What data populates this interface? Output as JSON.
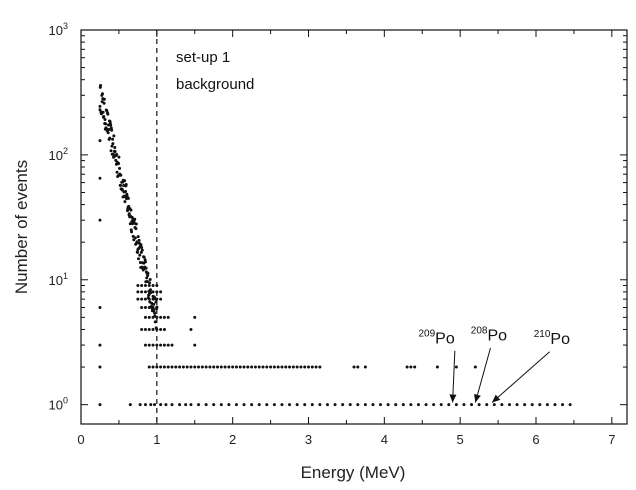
{
  "chart_data": {
    "type": "scatter",
    "xlabel": "Energy (MeV)",
    "ylabel": "Number of events",
    "xlim": [
      0,
      7.2
    ],
    "ylim": [
      0.7,
      1000
    ],
    "yscale": "log",
    "xticks": [
      0,
      1,
      2,
      3,
      4,
      5,
      6,
      7
    ],
    "yticks": [
      {
        "value": 1,
        "label": "10",
        "exp": "0"
      },
      {
        "value": 10,
        "label": "10",
        "exp": "1"
      },
      {
        "value": 100,
        "label": "10",
        "exp": "2"
      },
      {
        "value": 1000,
        "label": "10",
        "exp": "3"
      }
    ],
    "grid": false,
    "marker_color": "#111111",
    "vline_x": 1,
    "annotation_lines": [
      "set-up 1",
      "background"
    ],
    "isotopes": [
      {
        "mass": "209",
        "symbol": "Po",
        "energy": 4.9
      },
      {
        "mass": "208",
        "symbol": "Po",
        "energy": 5.2
      },
      {
        "mass": "210",
        "symbol": "Po",
        "energy": 5.4
      }
    ],
    "continuum": {
      "x_start": 0.25,
      "y_start": 300,
      "x_end": 1.0,
      "y_end": 5
    },
    "count1_x": [
      0.25,
      0.65,
      0.78,
      0.85,
      0.92,
      0.97,
      1.05,
      1.12,
      1.2,
      1.3,
      1.38,
      1.45,
      1.55,
      1.65,
      1.75,
      1.85,
      1.95,
      2.05,
      2.15,
      2.25,
      2.35,
      2.45,
      2.55,
      2.65,
      2.75,
      2.85,
      2.95,
      3.05,
      3.15,
      3.25,
      3.35,
      3.45,
      3.55,
      3.65,
      3.75,
      3.85,
      3.95,
      4.05,
      4.15,
      4.25,
      4.35,
      4.45,
      4.55,
      4.65,
      4.75,
      4.85,
      4.95,
      5.05,
      5.15,
      5.25,
      5.35,
      5.45,
      5.55,
      5.65,
      5.75,
      5.85,
      5.95,
      6.05,
      6.15,
      6.25,
      6.35,
      6.45
    ],
    "count2_x": [
      0.25,
      0.9,
      0.95,
      1.0,
      1.05,
      1.1,
      1.15,
      1.2,
      1.25,
      1.3,
      1.35,
      1.4,
      1.45,
      1.5,
      1.55,
      1.6,
      1.65,
      1.7,
      1.75,
      1.8,
      1.85,
      1.9,
      1.95,
      2.0,
      2.05,
      2.1,
      2.15,
      2.2,
      2.25,
      2.3,
      2.35,
      2.4,
      2.45,
      2.5,
      2.55,
      2.6,
      2.65,
      2.7,
      2.75,
      2.8,
      2.85,
      2.9,
      2.95,
      3.0,
      3.05,
      3.1,
      3.15,
      3.6,
      3.65,
      3.75,
      4.3,
      4.35,
      4.4,
      4.7,
      4.95,
      5.2
    ],
    "count3_x": [
      0.25,
      0.85,
      0.9,
      0.95,
      1.0,
      1.05,
      1.1,
      1.15,
      1.2,
      1.5
    ],
    "count4_x": [
      0.8,
      0.85,
      0.9,
      0.95,
      1.0,
      1.05,
      1.1,
      1.45
    ],
    "count5_x": [
      0.85,
      0.9,
      0.95,
      1.0,
      1.05,
      1.1,
      1.15,
      1.5
    ],
    "count6_x": [
      0.25,
      0.8,
      0.85,
      0.9,
      0.95,
      1.0
    ],
    "count7_x": [
      0.75,
      0.8,
      0.85,
      0.9,
      0.95,
      1.0,
      1.05
    ],
    "count8_x": [
      0.75,
      0.8,
      0.85,
      0.9,
      0.95,
      1.0,
      1.05
    ],
    "count9_x": [
      0.75,
      0.8,
      0.85,
      0.9,
      0.95,
      1.0
    ]
  }
}
